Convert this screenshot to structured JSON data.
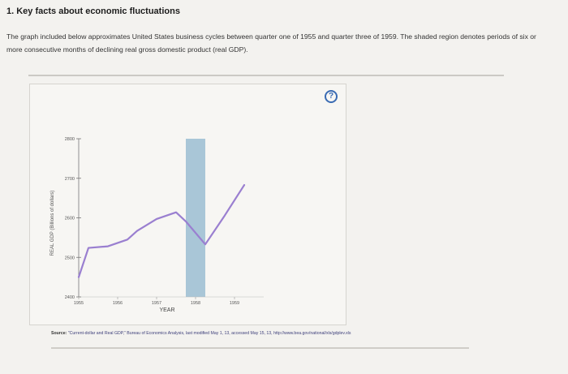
{
  "question": {
    "title": "1. Key facts about economic fluctuations",
    "text": "The graph included below approximates United States business cycles between quarter one of 1955 and quarter three of 1959. The shaded region denotes periods of six or more consecutive months of declining real gross domestic product (real GDP)."
  },
  "help_button": {
    "label": "?"
  },
  "source": {
    "label": "Source:",
    "text": "\"Current-dollar and Real GDP,\" Bureau of Economics Analysis, last modified May 1, 13, accessed May 15, 13, http://www.bea.gov/national/xls/gdplev.xls"
  },
  "colors": {
    "line": "#9a7fd0",
    "shade": "#a9c6d7",
    "help": "#3a6bb3"
  },
  "chart_data": {
    "type": "line",
    "xlabel": "YEAR",
    "ylabel": "REAL GDP (Billions of dollars)",
    "y_ticks": [
      2400,
      2500,
      2600,
      2700,
      2800
    ],
    "ylim": [
      2400,
      2800
    ],
    "x_ticks": [
      "1955",
      "1956",
      "1957",
      "1958",
      "1959"
    ],
    "xlim": [
      1955,
      1959.75
    ],
    "shaded_region": {
      "x_start": 1957.75,
      "x_end": 1958.25
    },
    "series": [
      {
        "x": [
          1955.0,
          1955.25,
          1955.75,
          1956.25,
          1956.5,
          1957.0,
          1957.5,
          1957.75,
          1958.25,
          1958.75,
          1959.25
        ],
        "y": [
          2450,
          2524,
          2528,
          2545,
          2567,
          2597,
          2614,
          2591,
          2533,
          2606,
          2683
        ]
      }
    ]
  }
}
